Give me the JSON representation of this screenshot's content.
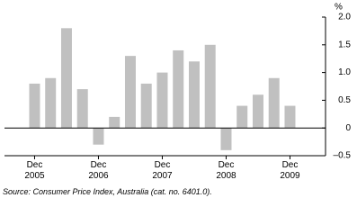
{
  "chart_data": {
    "type": "bar",
    "y_unit": "%",
    "source": "Source: Consumer Price Index, Australia (cat. no. 6401.0).",
    "categories": [
      "Dec\n2005",
      null,
      null,
      null,
      "Dec\n2006",
      null,
      null,
      null,
      "Dec\n2007",
      null,
      null,
      null,
      "Dec\n2008",
      null,
      null,
      null,
      "Dec\n2009"
    ],
    "values": [
      0.8,
      0.9,
      1.8,
      0.7,
      -0.3,
      0.2,
      1.3,
      0.8,
      1.0,
      1.4,
      1.2,
      1.5,
      -0.4,
      0.4,
      0.6,
      0.9,
      0.4
    ],
    "color": "#c0c0c0",
    "ylim": [
      -0.5,
      2.0
    ],
    "yticks": [
      {
        "value": -0.5,
        "label": "–0.5"
      },
      0,
      {
        "value": 0.5,
        "label": "0.5"
      },
      {
        "value": 1,
        "label": "1.0"
      },
      {
        "value": 1.5,
        "label": "1.5"
      },
      {
        "value": 2,
        "label": "2.0"
      }
    ]
  }
}
